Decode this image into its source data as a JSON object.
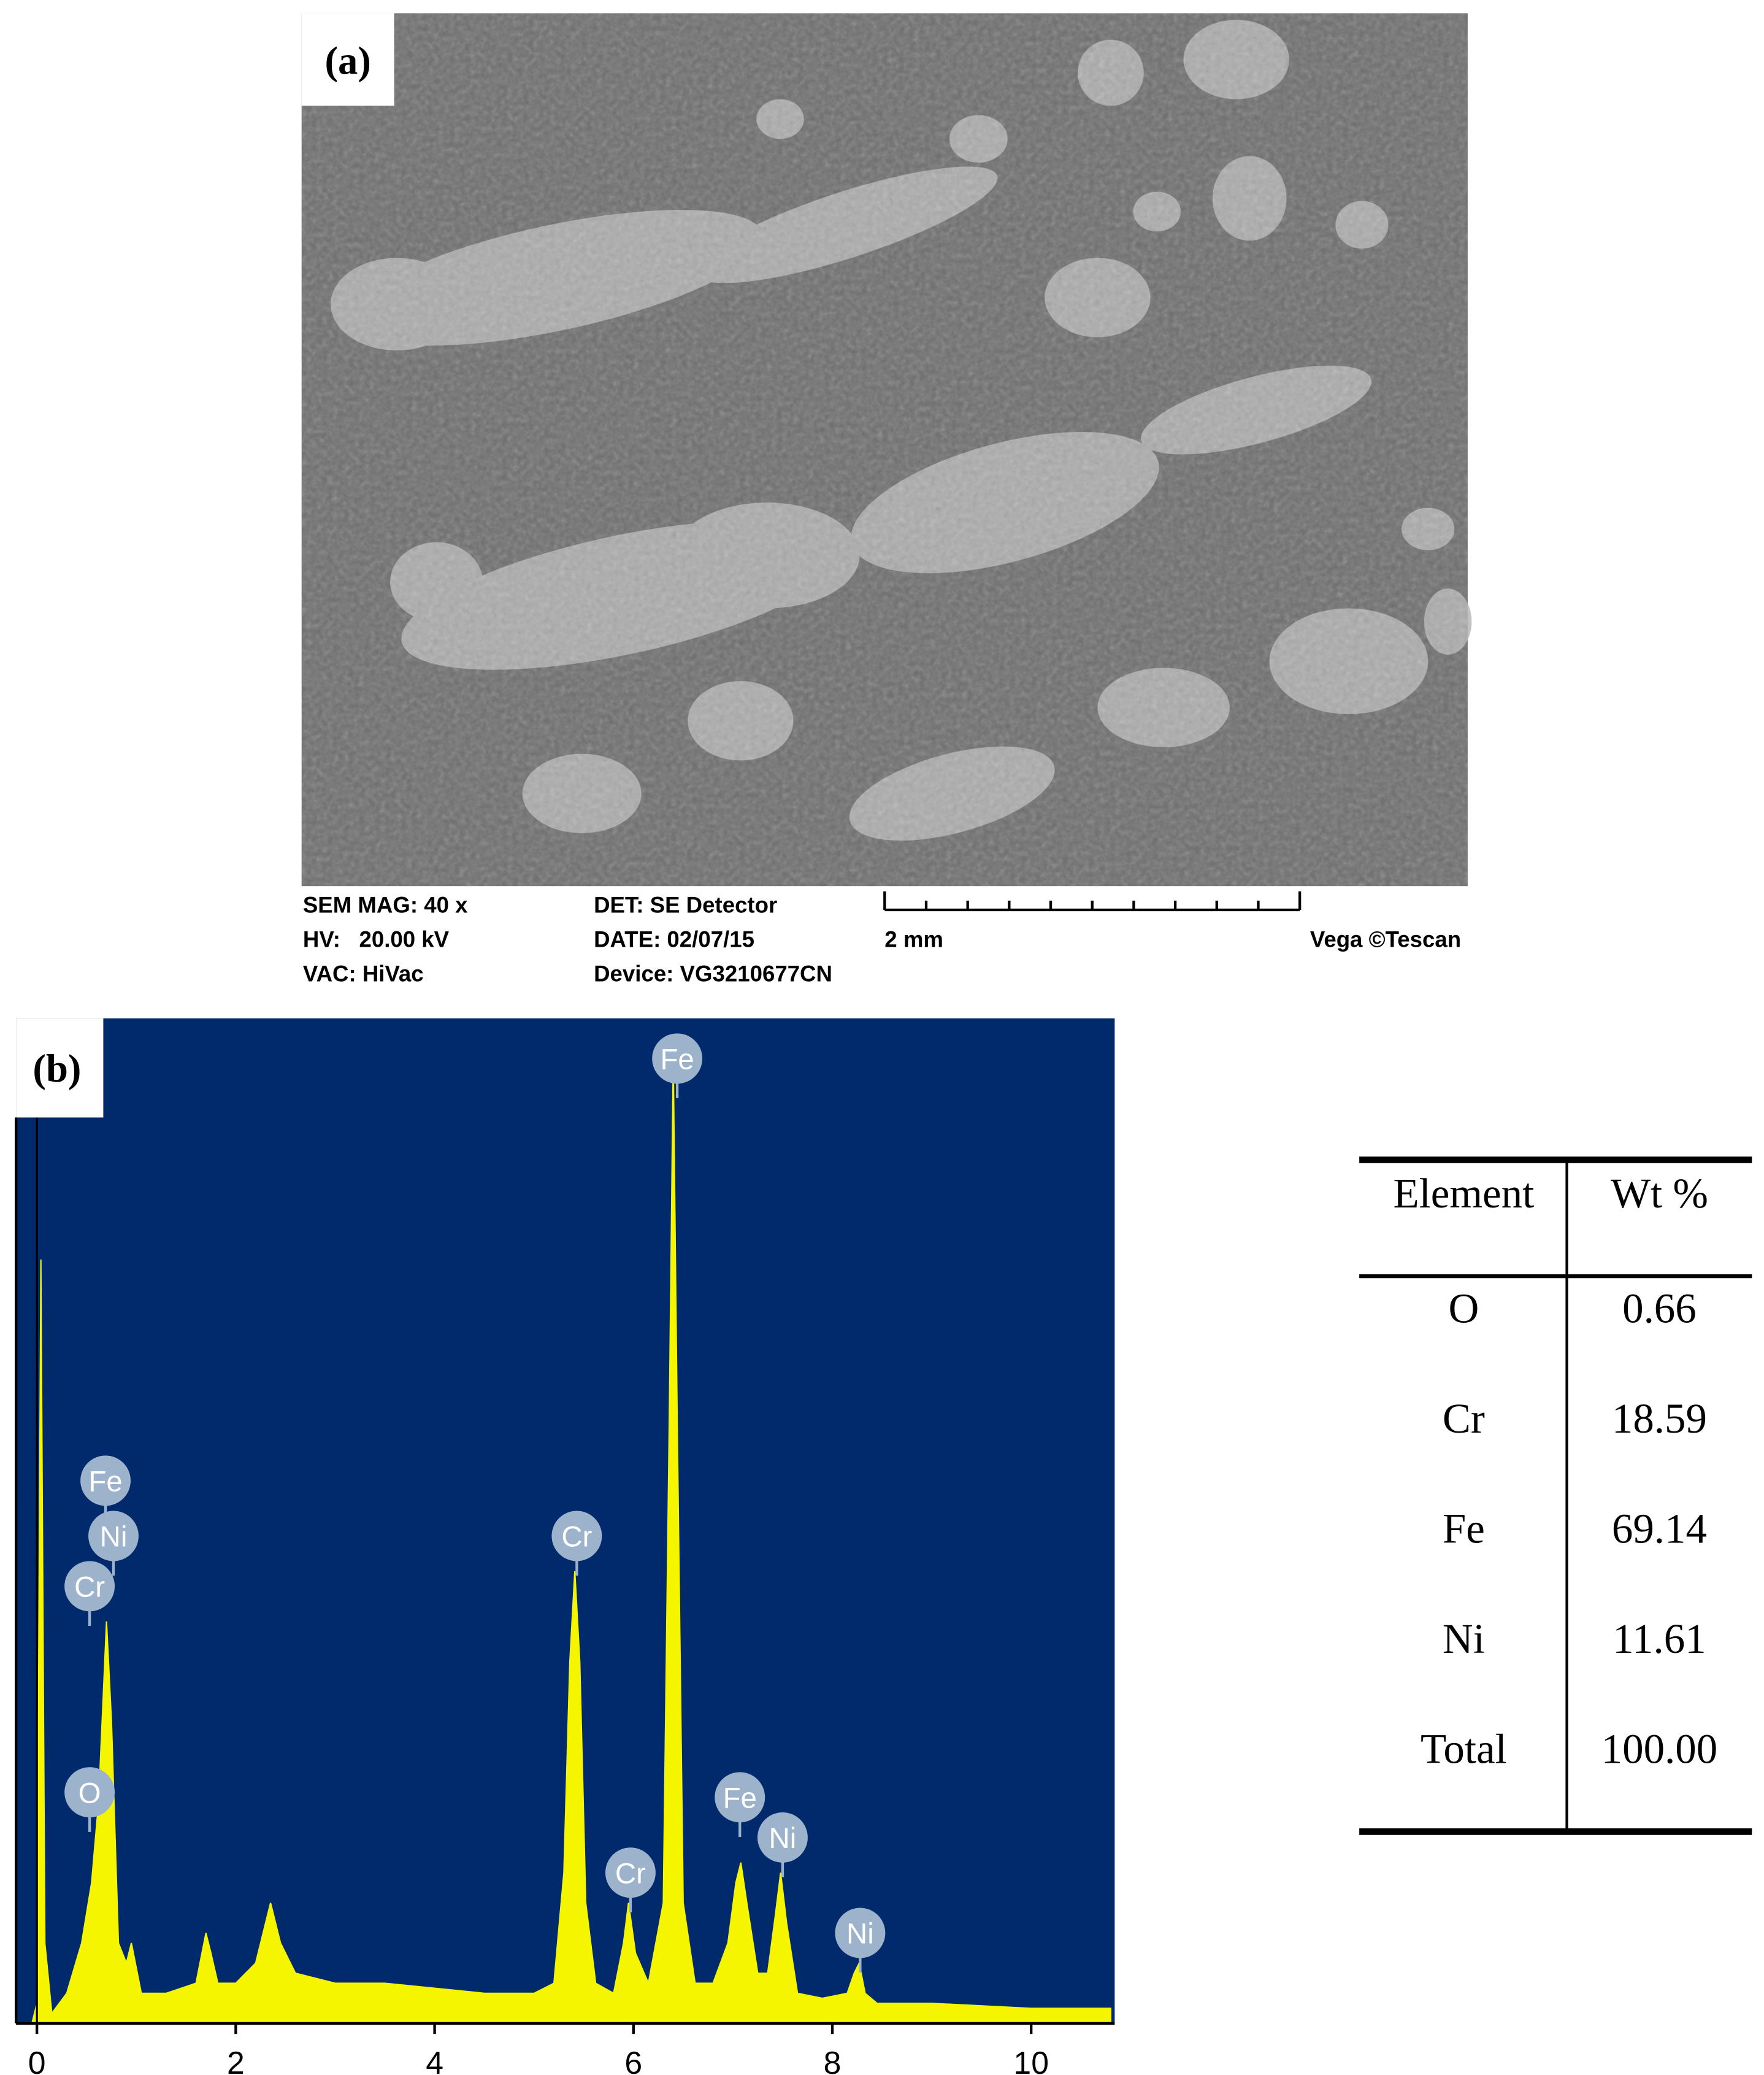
{
  "figure_a": {
    "label": "(a)",
    "info": [
      "SEM MAG: 40 x",
      "HV:   20.00 kV",
      "VAC: HiVac",
      "DET: SE Detector",
      "DATE: 02/07/15",
      "Device: VG3210677CN"
    ],
    "scale_bar": "2 mm",
    "brand": "Vega ©Tescan"
  },
  "chart_data": {
    "type": "area",
    "label": "(b)",
    "x": [
      -0.2,
      -0.05,
      0.0,
      0.04,
      0.08,
      0.15,
      0.3,
      0.45,
      0.55,
      0.62,
      0.7,
      0.75,
      0.82,
      0.9,
      0.95,
      1.05,
      1.3,
      1.6,
      1.7,
      1.75,
      1.82,
      2.0,
      2.2,
      2.3,
      2.35,
      2.45,
      2.6,
      3.0,
      3.5,
      4.0,
      4.5,
      5.0,
      5.2,
      5.3,
      5.36,
      5.41,
      5.46,
      5.52,
      5.62,
      5.8,
      5.9,
      5.95,
      6.02,
      6.15,
      6.3,
      6.36,
      6.4,
      6.44,
      6.5,
      6.62,
      6.8,
      6.95,
      7.03,
      7.08,
      7.14,
      7.25,
      7.35,
      7.43,
      7.48,
      7.54,
      7.65,
      7.9,
      8.15,
      8.22,
      8.27,
      8.33,
      8.45,
      9.0,
      10.0,
      10.8
    ],
    "values": [
      0,
      0,
      2,
      76,
      8,
      1,
      3,
      8,
      14,
      22,
      40,
      30,
      8,
      6,
      8,
      3,
      3,
      4,
      9,
      7,
      4,
      4,
      6,
      10,
      12,
      8,
      5,
      4,
      4,
      3.5,
      3,
      3,
      4,
      15,
      36,
      45,
      36,
      12,
      4,
      3,
      8,
      12,
      7,
      4,
      12,
      60,
      96,
      60,
      12,
      4,
      4,
      8,
      14,
      16,
      12,
      5,
      5,
      11,
      15,
      10,
      3,
      2.5,
      3,
      5,
      6,
      3,
      2,
      2,
      1.5,
      1.5
    ],
    "color": "#f5f500",
    "background": "#002a6c",
    "xlim": [
      -0.21,
      10.84
    ],
    "xticks": [
      0,
      2,
      4,
      6,
      8,
      10
    ],
    "ylim": [
      0,
      100
    ],
    "peak_labels": [
      {
        "text": "Fe",
        "x": 6.44,
        "y": 96
      },
      {
        "text": "Fe",
        "x": 0.69,
        "y": 54
      },
      {
        "text": "Ni",
        "x": 0.77,
        "y": 48.5
      },
      {
        "text": "Cr",
        "x": 0.53,
        "y": 43.5
      },
      {
        "text": "O",
        "x": 0.53,
        "y": 23
      },
      {
        "text": "Cr",
        "x": 5.43,
        "y": 48.5
      },
      {
        "text": "Cr",
        "x": 5.97,
        "y": 15
      },
      {
        "text": "Fe",
        "x": 7.07,
        "y": 22.5
      },
      {
        "text": "Ni",
        "x": 7.5,
        "y": 18.5
      },
      {
        "text": "Ni",
        "x": 8.28,
        "y": 9
      }
    ]
  },
  "table": {
    "header": [
      "Element",
      "Wt %"
    ],
    "rows": [
      [
        "O",
        "0.66"
      ],
      [
        "Cr",
        "18.59"
      ],
      [
        "Fe",
        "69.14"
      ],
      [
        "Ni",
        "11.61"
      ],
      [
        "Total",
        "100.00"
      ]
    ]
  }
}
